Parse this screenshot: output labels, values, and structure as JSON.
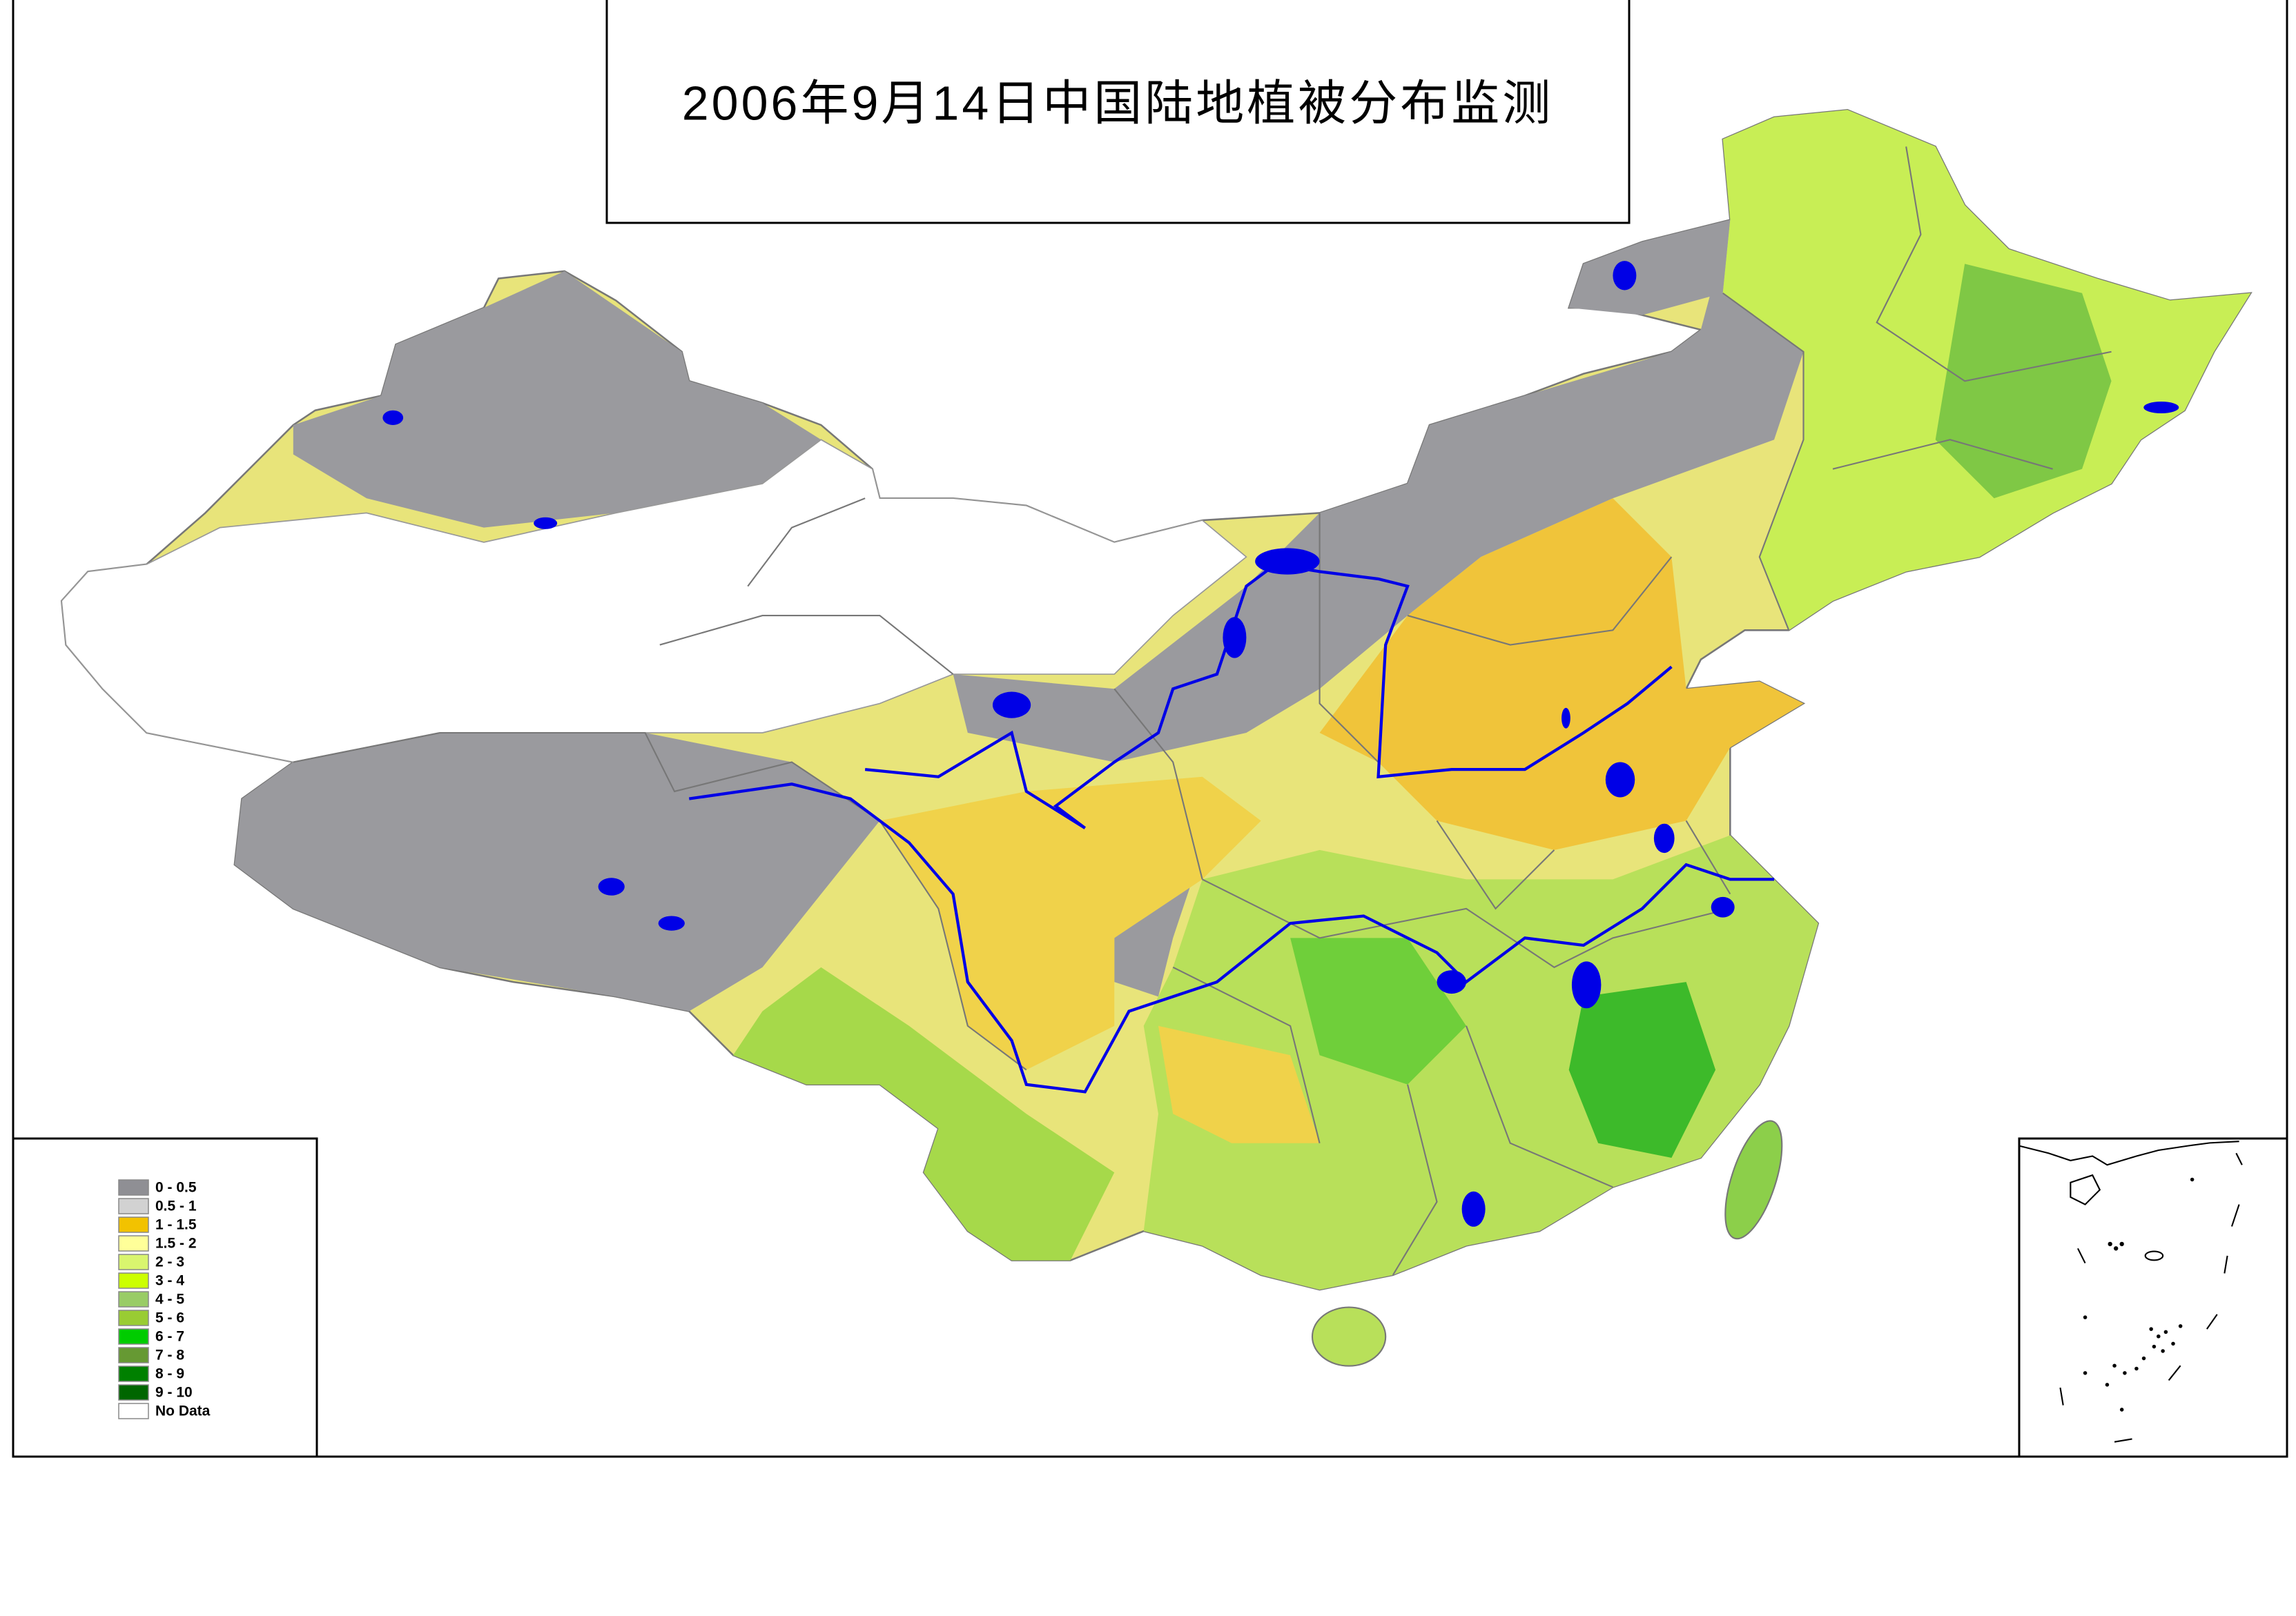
{
  "title": "2006年9月14日中国陆地植被分布监测",
  "legend": {
    "items": [
      {
        "label": "0 - 0.5",
        "color": "#8f8f94"
      },
      {
        "label": "0.5 - 1",
        "color": "#d2d2d2"
      },
      {
        "label": "1 - 1.5",
        "color": "#f2c200"
      },
      {
        "label": "1.5 - 2",
        "color": "#ffff99"
      },
      {
        "label": "2 - 3",
        "color": "#d9f56e"
      },
      {
        "label": "3 - 4",
        "color": "#ccff00"
      },
      {
        "label": "4 - 5",
        "color": "#99cc66"
      },
      {
        "label": "5 - 6",
        "color": "#99cc33"
      },
      {
        "label": "6 - 7",
        "color": "#00cc00"
      },
      {
        "label": "7 - 8",
        "color": "#669933"
      },
      {
        "label": "8 - 9",
        "color": "#008000"
      },
      {
        "label": "9 - 10",
        "color": "#006600"
      },
      {
        "label": "No Data",
        "color": "#ffffff"
      }
    ]
  }
}
